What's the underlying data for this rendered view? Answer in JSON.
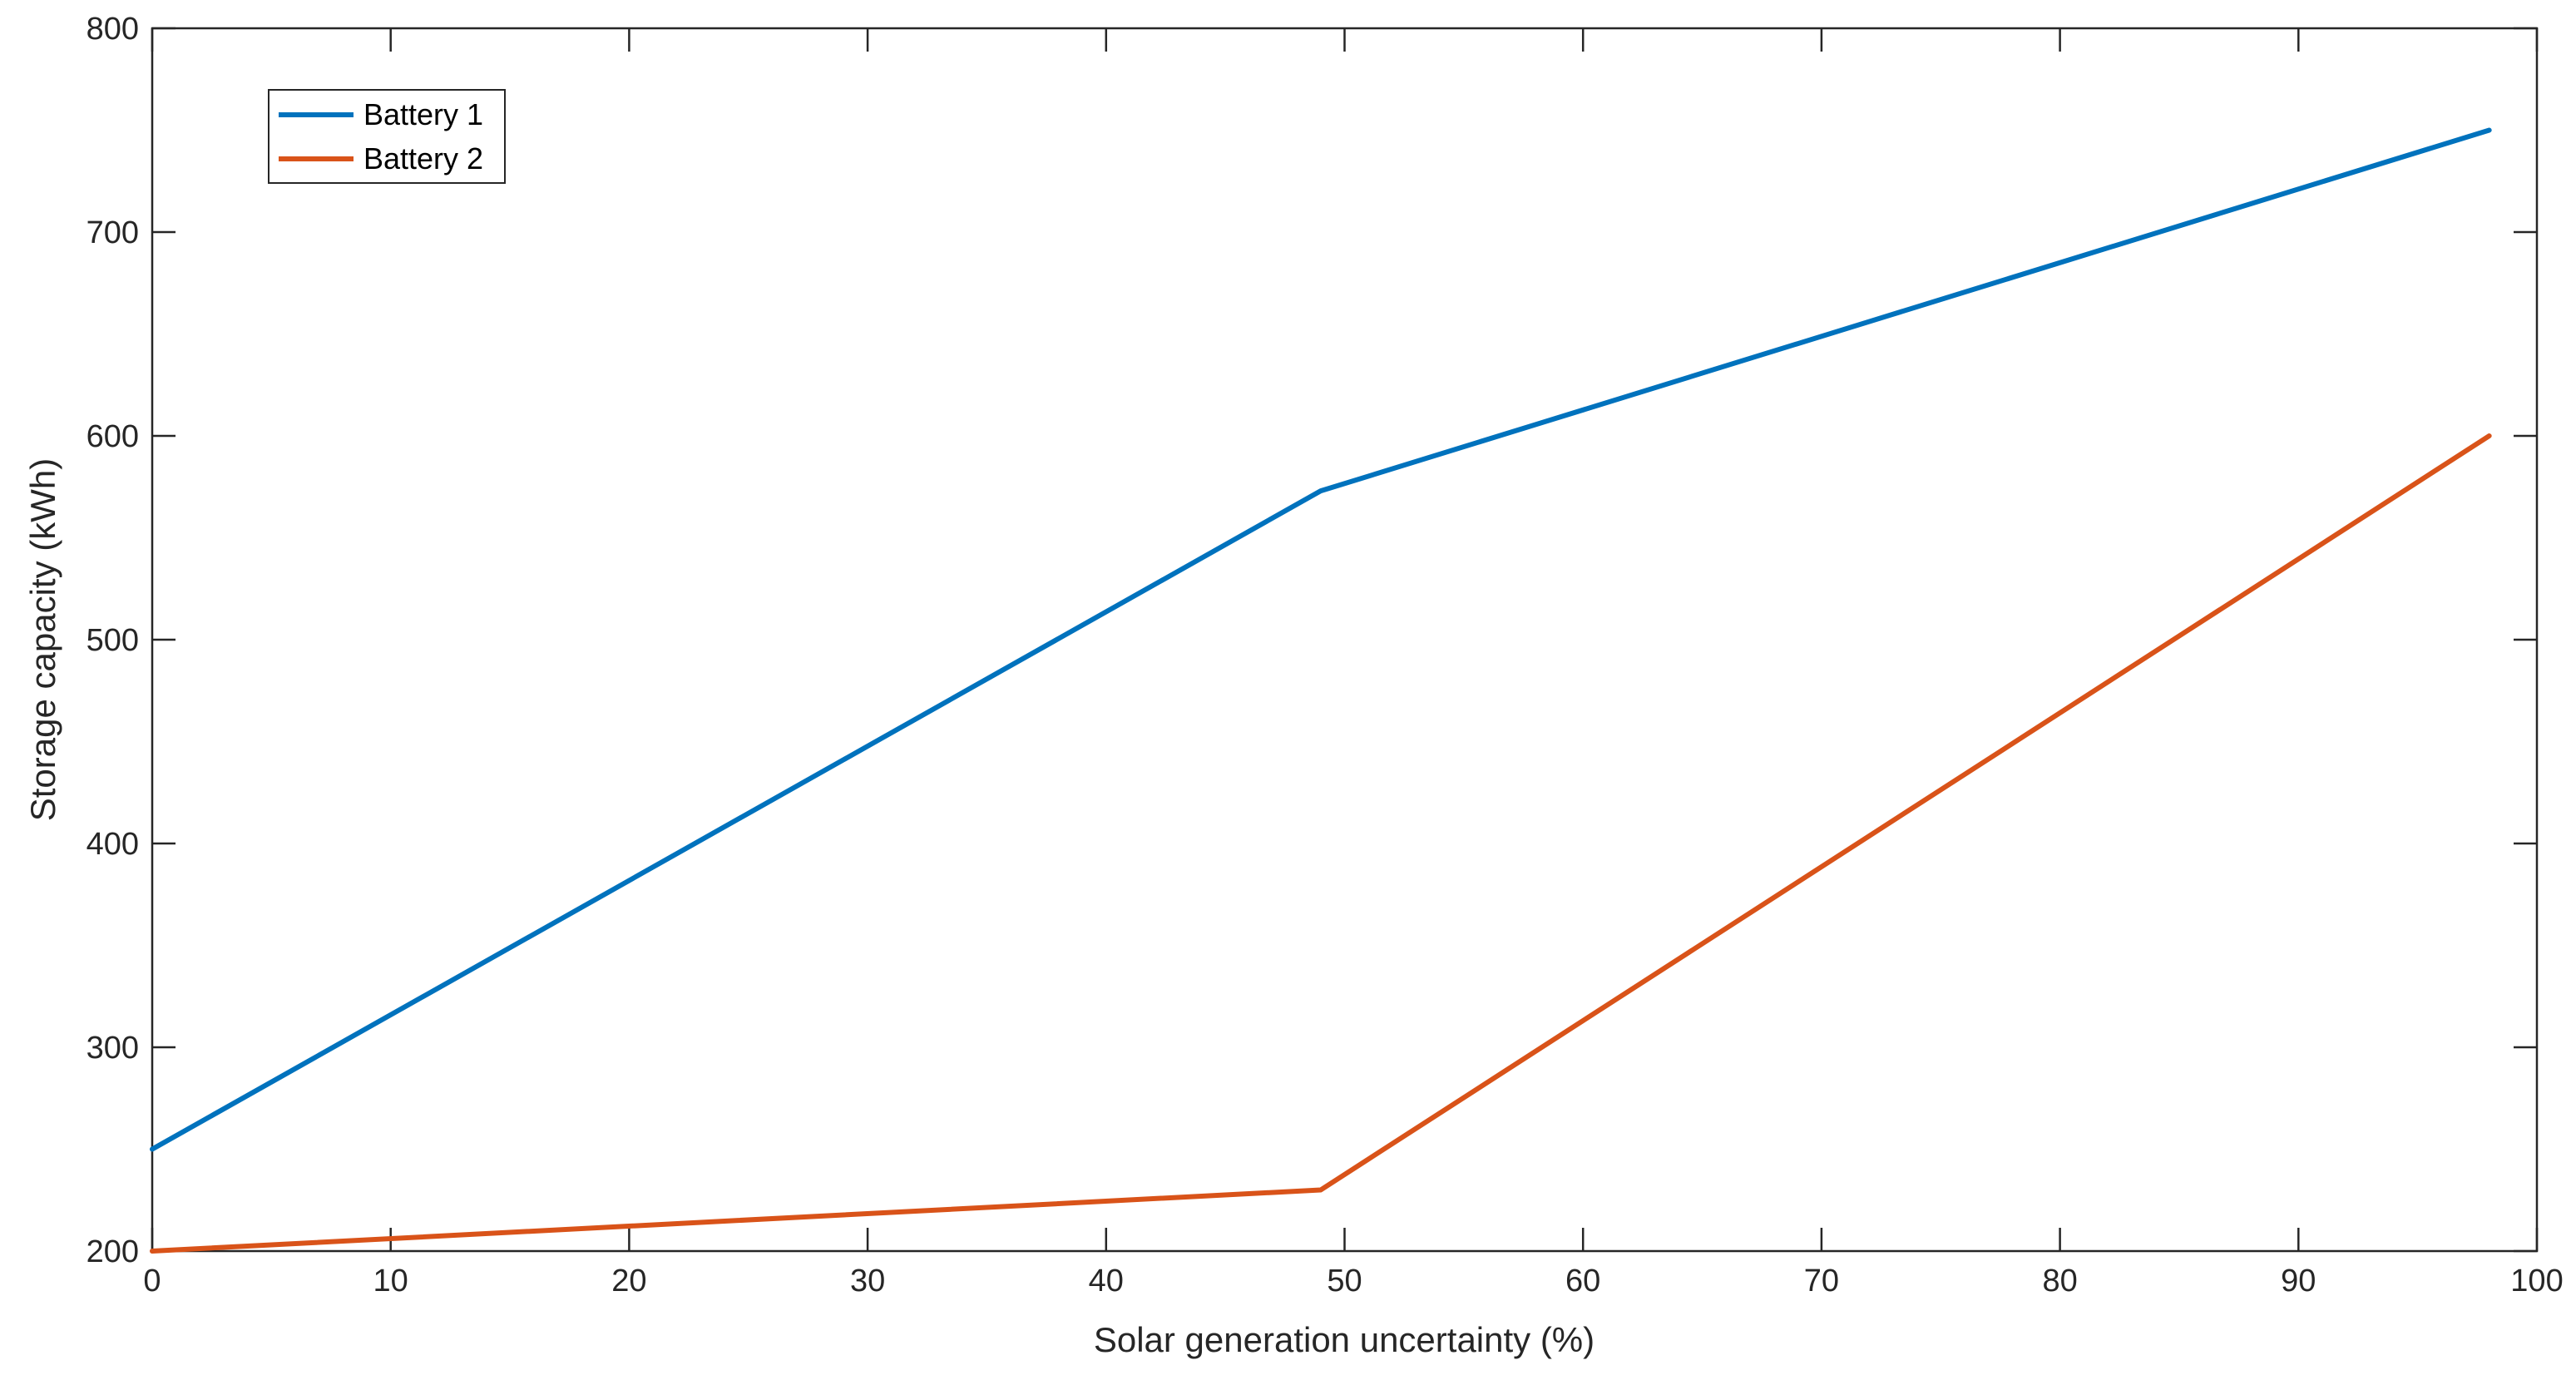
{
  "chart_data": {
    "type": "line",
    "title": "",
    "xlabel": "Solar generation uncertainty (%)",
    "ylabel": "Storage capacity (kWh)",
    "xlim": [
      0,
      100
    ],
    "ylim": [
      200,
      800
    ],
    "xticks": [
      0,
      10,
      20,
      30,
      40,
      50,
      60,
      70,
      80,
      90,
      100
    ],
    "yticks": [
      200,
      300,
      400,
      500,
      600,
      700,
      800
    ],
    "grid": false,
    "legend_position": "top-left",
    "series": [
      {
        "name": "Battery 1",
        "color": "#0072BD",
        "x": [
          0,
          49,
          98
        ],
        "y": [
          250,
          573,
          750
        ]
      },
      {
        "name": "Battery 2",
        "color": "#D95319",
        "x": [
          0,
          49,
          98
        ],
        "y": [
          200,
          230,
          600
        ]
      }
    ]
  }
}
